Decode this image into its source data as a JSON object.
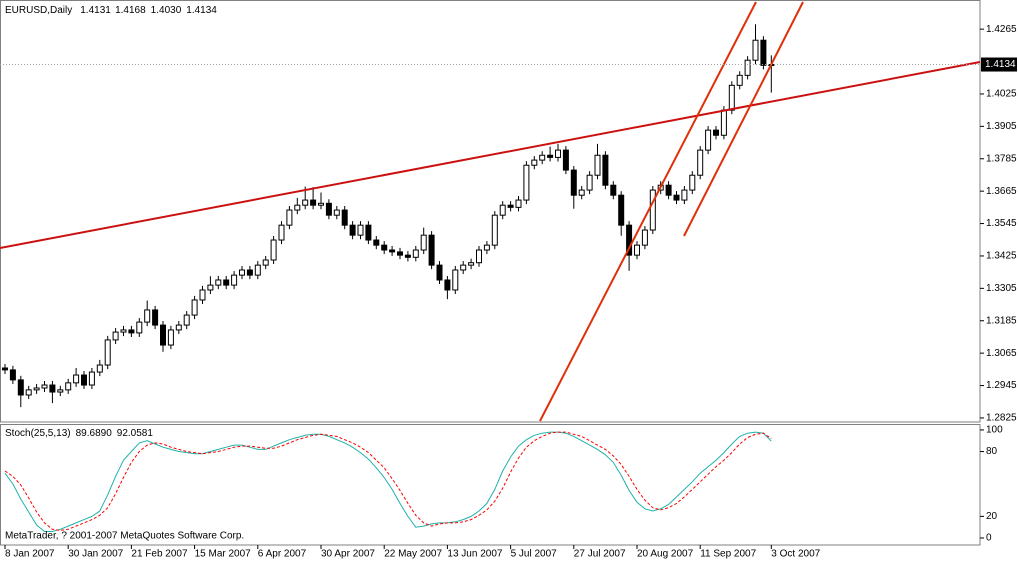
{
  "chart_data": [
    {
      "type": "candlestick",
      "title": "EURUSD,Daily",
      "ohlc_labels": [
        "1.4131",
        "1.4168",
        "1.4030",
        "1.4134"
      ],
      "categories": [
        "8 Jan 2007",
        null,
        null,
        null,
        null,
        null,
        null,
        null,
        "30 Jan 2007",
        null,
        null,
        null,
        null,
        null,
        null,
        null,
        "21 Feb 2007",
        null,
        null,
        null,
        null,
        null,
        null,
        null,
        "15 Mar 2007",
        null,
        null,
        null,
        null,
        null,
        null,
        null,
        "6 Apr 2007",
        null,
        null,
        null,
        null,
        null,
        null,
        null,
        "30 Apr 2007",
        null,
        null,
        null,
        null,
        null,
        null,
        null,
        "22 May 2007",
        null,
        null,
        null,
        null,
        null,
        null,
        null,
        "13 Jun 2007",
        null,
        null,
        null,
        null,
        null,
        null,
        null,
        "5 Jul 2007",
        null,
        null,
        null,
        null,
        null,
        null,
        null,
        "27 Jul 2007",
        null,
        null,
        null,
        null,
        null,
        null,
        null,
        "20 Aug 2007",
        null,
        null,
        null,
        null,
        null,
        null,
        null,
        "11 Sep 2007",
        null,
        null,
        null,
        null,
        null,
        null,
        null,
        null,
        "3 Oct 2007"
      ],
      "open": [
        1.301,
        1.3003,
        1.2966,
        1.291,
        1.2929,
        1.2936,
        1.2947,
        1.2921,
        1.2929,
        1.2955,
        1.2984,
        1.2947,
        1.2995,
        1.3021,
        1.3114,
        1.3143,
        1.3151,
        1.314,
        1.318,
        1.3225,
        1.3169,
        1.3095,
        1.3151,
        1.3169,
        1.3206,
        1.3262,
        1.3299,
        1.3317,
        1.3336,
        1.3317,
        1.3354,
        1.3373,
        1.3354,
        1.3391,
        1.341,
        1.3484,
        1.3539,
        1.3595,
        1.3613,
        1.3632,
        1.3613,
        1.362,
        1.3576,
        1.3595,
        1.3539,
        1.3502,
        1.3539,
        1.3484,
        1.3465,
        1.3447,
        1.344,
        1.3428,
        1.342,
        1.3447,
        1.3502,
        1.3391,
        1.3336,
        1.3299,
        1.3373,
        1.3391,
        1.34,
        1.3447,
        1.3465,
        1.3576,
        1.3613,
        1.3605,
        1.3632,
        1.3761,
        1.378,
        1.3798,
        1.379,
        1.3817,
        1.3743,
        1.365,
        1.3669,
        1.3724,
        1.3798,
        1.3687,
        1.365,
        1.3539,
        1.3428,
        1.3465,
        1.3521,
        1.3669,
        1.3687,
        1.365,
        1.3632,
        1.3669,
        1.3724,
        1.3817,
        1.3891,
        1.3872,
        1.3965,
        1.4057,
        1.4094,
        1.415,
        1.4224,
        1.4131
      ],
      "high": [
        1.3025,
        1.3018,
        1.2981,
        1.2944,
        1.2951,
        1.2962,
        1.2962,
        1.2944,
        1.297,
        1.301,
        1.2999,
        1.301,
        1.304,
        1.3129,
        1.3158,
        1.3166,
        1.3166,
        1.3195,
        1.326,
        1.324,
        1.3184,
        1.3166,
        1.3184,
        1.3221,
        1.3277,
        1.3314,
        1.335,
        1.3351,
        1.3351,
        1.3369,
        1.3388,
        1.3388,
        1.3406,
        1.3425,
        1.3499,
        1.3554,
        1.361,
        1.364,
        1.3682,
        1.368,
        1.366,
        1.3635,
        1.361,
        1.361,
        1.3554,
        1.3554,
        1.3554,
        1.3499,
        1.348,
        1.3462,
        1.3455,
        1.3443,
        1.3462,
        1.353,
        1.3517,
        1.3406,
        1.3351,
        1.3388,
        1.3406,
        1.3415,
        1.3462,
        1.348,
        1.3591,
        1.3628,
        1.3628,
        1.3647,
        1.3776,
        1.3795,
        1.3813,
        1.383,
        1.384,
        1.3832,
        1.3758,
        1.3684,
        1.3739,
        1.384,
        1.3813,
        1.3702,
        1.3665,
        1.3554,
        1.348,
        1.3536,
        1.3684,
        1.3702,
        1.3702,
        1.3665,
        1.3684,
        1.3739,
        1.3832,
        1.3906,
        1.3906,
        1.398,
        1.4072,
        1.4109,
        1.4165,
        1.4283,
        1.4239,
        1.4168
      ],
      "low": [
        1.2988,
        1.2951,
        1.2865,
        1.2895,
        1.2914,
        1.2921,
        1.288,
        1.2906,
        1.2914,
        1.294,
        1.2932,
        1.2932,
        1.298,
        1.3006,
        1.3099,
        1.3128,
        1.3125,
        1.3125,
        1.3165,
        1.3154,
        1.307,
        1.308,
        1.3136,
        1.3154,
        1.3191,
        1.3247,
        1.3284,
        1.3302,
        1.3302,
        1.3302,
        1.3339,
        1.3339,
        1.3339,
        1.3376,
        1.3395,
        1.3469,
        1.3524,
        1.358,
        1.3598,
        1.3598,
        1.3598,
        1.3561,
        1.3561,
        1.3524,
        1.3487,
        1.3487,
        1.3469,
        1.345,
        1.3432,
        1.3425,
        1.3413,
        1.3405,
        1.3405,
        1.3432,
        1.3376,
        1.3321,
        1.3265,
        1.3284,
        1.3358,
        1.3376,
        1.3385,
        1.3432,
        1.345,
        1.3561,
        1.359,
        1.359,
        1.3617,
        1.3746,
        1.3765,
        1.3775,
        1.3775,
        1.3728,
        1.36,
        1.3635,
        1.3654,
        1.3709,
        1.3672,
        1.3635,
        1.35,
        1.337,
        1.3413,
        1.345,
        1.3506,
        1.3654,
        1.3635,
        1.3617,
        1.3617,
        1.3654,
        1.3709,
        1.3802,
        1.3857,
        1.3857,
        1.395,
        1.4042,
        1.4079,
        1.4135,
        1.4116,
        1.403
      ],
      "close": [
        1.3003,
        1.2966,
        1.291,
        1.2929,
        1.2936,
        1.2947,
        1.2921,
        1.2929,
        1.2955,
        1.2984,
        1.2947,
        1.2995,
        1.3021,
        1.3114,
        1.3143,
        1.3151,
        1.314,
        1.318,
        1.3225,
        1.3169,
        1.3095,
        1.3151,
        1.3169,
        1.3206,
        1.3262,
        1.3299,
        1.3317,
        1.3336,
        1.3317,
        1.3354,
        1.3373,
        1.3354,
        1.3391,
        1.341,
        1.3484,
        1.3539,
        1.3595,
        1.3613,
        1.3632,
        1.3613,
        1.362,
        1.3576,
        1.3595,
        1.3539,
        1.3502,
        1.3539,
        1.3484,
        1.3465,
        1.3447,
        1.344,
        1.3428,
        1.342,
        1.3447,
        1.3502,
        1.3391,
        1.3336,
        1.3299,
        1.3373,
        1.3391,
        1.34,
        1.3447,
        1.3465,
        1.3576,
        1.3613,
        1.3605,
        1.3632,
        1.3761,
        1.378,
        1.3798,
        1.379,
        1.3817,
        1.3743,
        1.365,
        1.3669,
        1.3724,
        1.3798,
        1.3687,
        1.365,
        1.3539,
        1.3428,
        1.3465,
        1.3521,
        1.3669,
        1.3687,
        1.365,
        1.3632,
        1.3669,
        1.3724,
        1.3817,
        1.3891,
        1.3872,
        1.3965,
        1.4057,
        1.4094,
        1.415,
        1.4224,
        1.4131,
        1.4134
      ],
      "up_color": "#ffffff",
      "down_color": "#000000",
      "outline_color": "#000000",
      "ylim": [
        1.281,
        1.4373
      ],
      "yticks": [
        1.2825,
        1.2945,
        1.3065,
        1.3185,
        1.3305,
        1.3425,
        1.3545,
        1.3665,
        1.3785,
        1.3905,
        1.4025,
        1.4265
      ],
      "grid": false
    },
    {
      "type": "line",
      "title": "Stoch(25,5,13)",
      "note": "MetaTrader, ? 2001-2007 MetaQuotes Software Corp.",
      "series": [
        {
          "color": "#20b2aa",
          "dash": false,
          "values": [
            60,
            50,
            36,
            24,
            12,
            6,
            6,
            8,
            11,
            14,
            17,
            20,
            25,
            40,
            57,
            72,
            80,
            88,
            90,
            87,
            84,
            82,
            80,
            79,
            78,
            78,
            80,
            82,
            84,
            86,
            86,
            84,
            82,
            82,
            85,
            88,
            91,
            93,
            95,
            96,
            96,
            94,
            91,
            88,
            84,
            79,
            73,
            65,
            56,
            45,
            32,
            20,
            10,
            11,
            13,
            14,
            14,
            15,
            17,
            20,
            25,
            32,
            45,
            62,
            75,
            85,
            91,
            95,
            97,
            98,
            98,
            97,
            94,
            90,
            86,
            82,
            77,
            70,
            58,
            44,
            33,
            27,
            25,
            27,
            31,
            38,
            45,
            52,
            60,
            66,
            72,
            79,
            87,
            94,
            97,
            98,
            97,
            89.689
          ],
          "value_labels": [
            null,
            null,
            null,
            null,
            null,
            null,
            null,
            null,
            null,
            null,
            null,
            null,
            null,
            null,
            null,
            null,
            null,
            null,
            null,
            null,
            null,
            null,
            null,
            null,
            null,
            null,
            null,
            null,
            null,
            null,
            null,
            null,
            null,
            null,
            null,
            null,
            null,
            null,
            null,
            null,
            null,
            null,
            null,
            null,
            null,
            null,
            null,
            null,
            null,
            null,
            null,
            null,
            null,
            null,
            null,
            null,
            null,
            null,
            null,
            null,
            null,
            null,
            null,
            null,
            null,
            null,
            null,
            null,
            null,
            null,
            null,
            null,
            null,
            null,
            null,
            null,
            null,
            null,
            null,
            null,
            null,
            null,
            null,
            null,
            null,
            null,
            null,
            null,
            null,
            null,
            null,
            null,
            null,
            null,
            null,
            null,
            null,
            "89.6890"
          ]
        },
        {
          "color": "#ff0000",
          "dash": true,
          "values": [
            62,
            57,
            49,
            37,
            24,
            14,
            8,
            7,
            8,
            11,
            14,
            17,
            21,
            28,
            41,
            56,
            70,
            80,
            86,
            88,
            87,
            84,
            82,
            80,
            79,
            78,
            79,
            80,
            82,
            84,
            85,
            85,
            84,
            83,
            83,
            85,
            88,
            91,
            93,
            95,
            96,
            95,
            94,
            91,
            88,
            84,
            79,
            72,
            65,
            55,
            44,
            32,
            21,
            14,
            11,
            13,
            14,
            14,
            15,
            17,
            21,
            26,
            34,
            46,
            61,
            74,
            84,
            90,
            94,
            97,
            98,
            98,
            96,
            94,
            90,
            86,
            82,
            76,
            68,
            57,
            45,
            35,
            28,
            26,
            28,
            32,
            38,
            45,
            52,
            59,
            66,
            72,
            79,
            87,
            93,
            96,
            97,
            92.0581
          ],
          "value_labels": [
            null,
            null,
            null,
            null,
            null,
            null,
            null,
            null,
            null,
            null,
            null,
            null,
            null,
            null,
            null,
            null,
            null,
            null,
            null,
            null,
            null,
            null,
            null,
            null,
            null,
            null,
            null,
            null,
            null,
            null,
            null,
            null,
            null,
            null,
            null,
            null,
            null,
            null,
            null,
            null,
            null,
            null,
            null,
            null,
            null,
            null,
            null,
            null,
            null,
            null,
            null,
            null,
            null,
            null,
            null,
            null,
            null,
            null,
            null,
            null,
            null,
            null,
            null,
            null,
            null,
            null,
            null,
            null,
            null,
            null,
            null,
            null,
            null,
            null,
            null,
            null,
            null,
            null,
            null,
            null,
            null,
            null,
            null,
            null,
            null,
            null,
            null,
            null,
            null,
            null,
            null,
            null,
            null,
            null,
            null,
            null,
            null,
            "92.0581"
          ]
        }
      ],
      "ylim": [
        -6.5,
        105.5
      ],
      "yticks": [
        0,
        20,
        80,
        100
      ]
    }
  ]
}
